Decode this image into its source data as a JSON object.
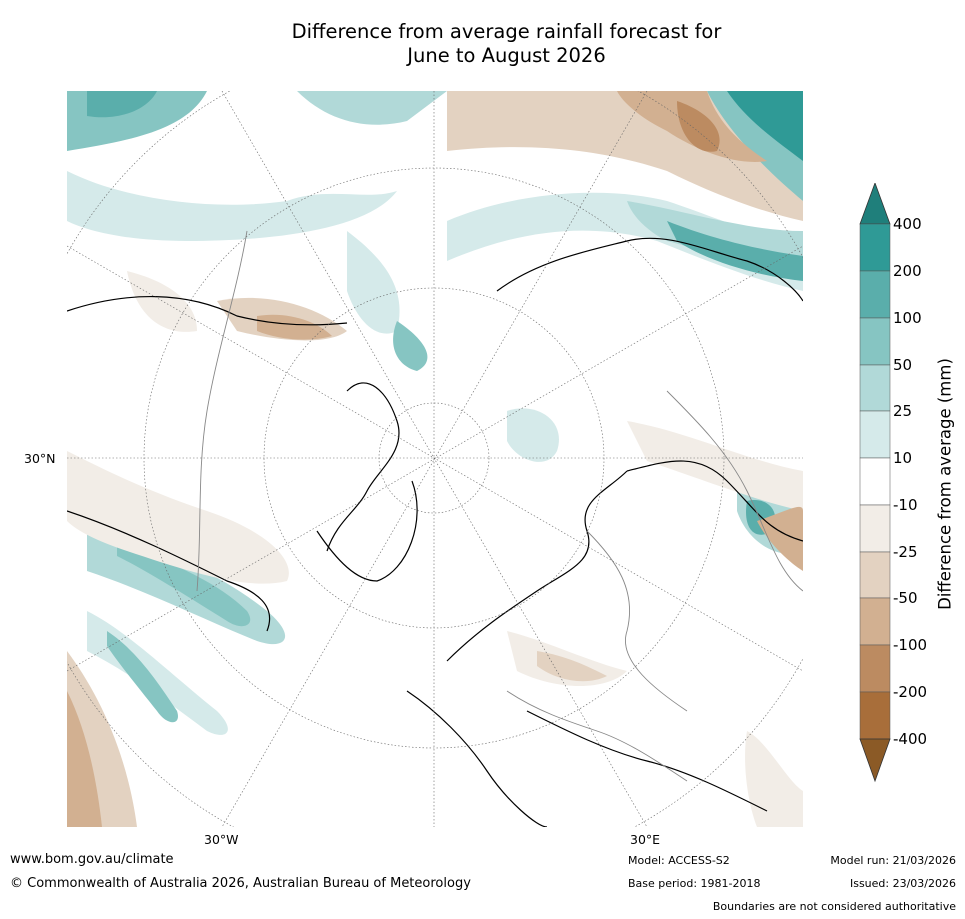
{
  "title": {
    "line1": "Difference from average rainfall forecast for",
    "line2": "June to August 2026"
  },
  "map": {
    "lat_label_30n": "30°N",
    "lon_label_30w": "30°W",
    "lon_label_30e": "30°E"
  },
  "colorbar": {
    "title": "Difference from average (mm)",
    "ticks": [
      "400",
      "200",
      "100",
      "50",
      "25",
      "10",
      "-10",
      "-25",
      "-50",
      "-100",
      "-200",
      "-400"
    ],
    "colors": [
      "#1f7f7b",
      "#2f9a96",
      "#5aaeab",
      "#86c5c2",
      "#b1d9d8",
      "#d5eaea",
      "#ffffff",
      "#f2ede7",
      "#e3d2c1",
      "#d2b091",
      "#bc8b61",
      "#a86e3a",
      "#8b5a26"
    ]
  },
  "footer": {
    "website": "www.bom.gov.au/climate",
    "copyright": "© Commonwealth of Australia 2026, Australian Bureau of Meteorology",
    "model": "Model: ACCESS-S2",
    "base_period": "Base period: 1981-2018",
    "model_run": "Model run: 21/03/2026",
    "issued": "Issued: 23/03/2026",
    "disclaimer": "Boundaries are not considered authoritative"
  }
}
